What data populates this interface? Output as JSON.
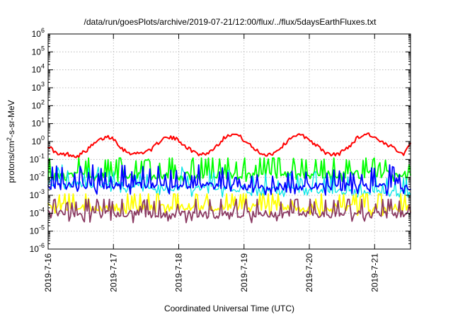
{
  "chart_data": {
    "type": "line",
    "title": "/data/run/goesPlots/archive/2019-07-21/12:00/flux/../flux/5daysEarthFluxes.txt",
    "xlabel": "Coordinated Universal Time (UTC)",
    "ylabel": {
      "prefix": "protons/cm",
      "sup": "2",
      "suffix": "-s-sr-MeV"
    },
    "yscale": "log",
    "ylim_exponents": [
      -6,
      6
    ],
    "y_tick_labels": [
      {
        "base": "10",
        "exp": "-6"
      },
      {
        "base": "10",
        "exp": "-5"
      },
      {
        "base": "10",
        "exp": "-4"
      },
      {
        "base": "10",
        "exp": "-3"
      },
      {
        "base": "10",
        "exp": "-2"
      },
      {
        "base": "10",
        "exp": "-1"
      },
      {
        "base": "10",
        "exp": "0"
      },
      {
        "base": "10",
        "exp": "1"
      },
      {
        "base": "10",
        "exp": "2"
      },
      {
        "base": "10",
        "exp": "3"
      },
      {
        "base": "10",
        "exp": "4"
      },
      {
        "base": "10",
        "exp": "5"
      },
      {
        "base": "10",
        "exp": "6"
      }
    ],
    "xlim_days": [
      0,
      5.55
    ],
    "x_tick_labels": [
      "2019-7-16",
      "2019-7-17",
      "2019-7-18",
      "2019-7-19",
      "2019-7-20",
      "2019-7-21"
    ],
    "grid": true,
    "series": [
      {
        "color": "#ff0000",
        "width": 2.0,
        "min": 0.08,
        "max": 4.0,
        "points": [
          [
            0.0,
            0.6
          ],
          [
            0.15,
            0.18
          ],
          [
            0.3,
            0.2
          ],
          [
            0.45,
            0.15
          ],
          [
            0.6,
            0.35
          ],
          [
            0.75,
            1.0
          ],
          [
            0.9,
            1.9
          ],
          [
            1.0,
            1.5
          ],
          [
            1.15,
            0.35
          ],
          [
            1.3,
            0.2
          ],
          [
            1.45,
            0.25
          ],
          [
            1.6,
            0.4
          ],
          [
            1.75,
            1.5
          ],
          [
            1.9,
            1.6
          ],
          [
            2.0,
            1.2
          ],
          [
            2.15,
            0.4
          ],
          [
            2.3,
            0.2
          ],
          [
            2.45,
            0.22
          ],
          [
            2.6,
            0.7
          ],
          [
            2.75,
            2.5
          ],
          [
            2.9,
            2.4
          ],
          [
            3.0,
            1.2
          ],
          [
            3.15,
            0.4
          ],
          [
            3.3,
            0.18
          ],
          [
            3.45,
            0.22
          ],
          [
            3.6,
            0.6
          ],
          [
            3.75,
            2.2
          ],
          [
            3.9,
            2.1
          ],
          [
            4.0,
            1.3
          ],
          [
            4.15,
            0.45
          ],
          [
            4.3,
            0.18
          ],
          [
            4.45,
            0.2
          ],
          [
            4.6,
            0.5
          ],
          [
            4.75,
            1.8
          ],
          [
            4.9,
            2.8
          ],
          [
            5.0,
            1.6
          ],
          [
            5.15,
            0.7
          ],
          [
            5.3,
            0.45
          ],
          [
            5.45,
            0.2
          ],
          [
            5.55,
            1.0
          ]
        ]
      },
      {
        "color": "#00ff00",
        "width": 1.8,
        "min": 0.006,
        "max": 0.12,
        "points": [
          [
            0.0,
            0.012
          ],
          [
            5.55,
            0.015
          ]
        ]
      },
      {
        "color": "#00e5e5",
        "width": 1.3,
        "min": 0.0008,
        "max": 0.05,
        "points": [
          [
            0.0,
            0.0045
          ],
          [
            5.55,
            0.0012
          ]
        ]
      },
      {
        "color": "#0000ff",
        "width": 1.8,
        "min": 0.0008,
        "max": 0.05,
        "points": [
          [
            0.0,
            0.0035
          ],
          [
            5.55,
            0.003
          ]
        ]
      },
      {
        "color": "#ffff00",
        "width": 1.8,
        "min": 7e-05,
        "max": 0.0012,
        "points": [
          [
            0.0,
            0.00022
          ],
          [
            5.55,
            0.0002
          ]
        ]
      },
      {
        "color": "#8b3a62",
        "width": 1.8,
        "min": 3e-05,
        "max": 0.0006,
        "points": [
          [
            0.0,
            9e-05
          ],
          [
            5.55,
            9e-05
          ]
        ]
      }
    ]
  }
}
